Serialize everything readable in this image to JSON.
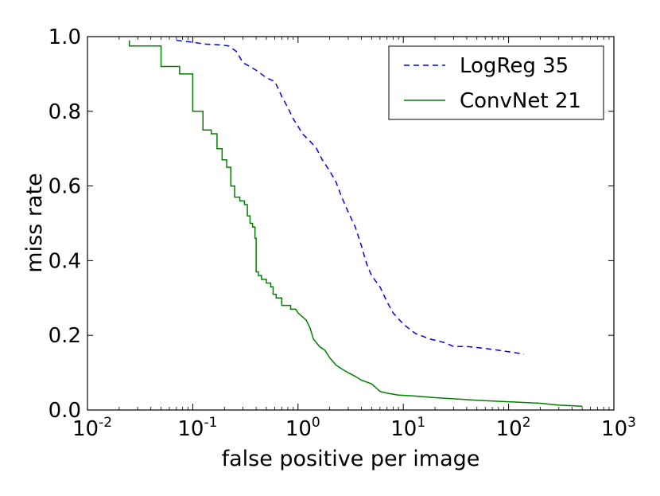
{
  "chart_data": {
    "type": "line",
    "title": "",
    "xlabel": "false positive per image",
    "ylabel": "miss rate",
    "xscale": "log",
    "xlim": [
      0.01,
      1000
    ],
    "ylim": [
      0.0,
      1.0
    ],
    "x_ticks": [
      {
        "base": "10",
        "exp": "-2",
        "value": 0.01
      },
      {
        "base": "10",
        "exp": "-1",
        "value": 0.1
      },
      {
        "base": "10",
        "exp": "0",
        "value": 1
      },
      {
        "base": "10",
        "exp": "1",
        "value": 10
      },
      {
        "base": "10",
        "exp": "2",
        "value": 100
      },
      {
        "base": "10",
        "exp": "3",
        "value": 1000
      }
    ],
    "y_ticks": [
      {
        "label": "0.0",
        "value": 0.0
      },
      {
        "label": "0.2",
        "value": 0.2
      },
      {
        "label": "0.4",
        "value": 0.4
      },
      {
        "label": "0.6",
        "value": 0.6
      },
      {
        "label": "0.8",
        "value": 0.8
      },
      {
        "label": "1.0",
        "value": 1.0
      }
    ],
    "grid": false,
    "legend_position": "top-right",
    "series": [
      {
        "name": "LogReg 35",
        "color": "#0000ff",
        "style": "dashed",
        "points": [
          [
            0.07,
            0.99
          ],
          [
            0.1,
            0.985
          ],
          [
            0.13,
            0.98
          ],
          [
            0.18,
            0.978
          ],
          [
            0.22,
            0.975
          ],
          [
            0.26,
            0.96
          ],
          [
            0.3,
            0.93
          ],
          [
            0.35,
            0.92
          ],
          [
            0.4,
            0.91
          ],
          [
            0.5,
            0.89
          ],
          [
            0.6,
            0.88
          ],
          [
            0.65,
            0.86
          ],
          [
            0.7,
            0.84
          ],
          [
            0.8,
            0.81
          ],
          [
            0.9,
            0.78
          ],
          [
            1.0,
            0.76
          ],
          [
            1.1,
            0.74
          ],
          [
            1.3,
            0.72
          ],
          [
            1.5,
            0.7
          ],
          [
            1.7,
            0.67
          ],
          [
            2.0,
            0.64
          ],
          [
            2.3,
            0.61
          ],
          [
            2.6,
            0.57
          ],
          [
            3.0,
            0.53
          ],
          [
            3.5,
            0.49
          ],
          [
            4.0,
            0.44
          ],
          [
            4.5,
            0.39
          ],
          [
            5.0,
            0.36
          ],
          [
            6.0,
            0.33
          ],
          [
            7.0,
            0.29
          ],
          [
            8.0,
            0.26
          ],
          [
            10.0,
            0.23
          ],
          [
            13.0,
            0.205
          ],
          [
            18.0,
            0.19
          ],
          [
            25.0,
            0.18
          ],
          [
            30.0,
            0.17
          ],
          [
            40.0,
            0.17
          ],
          [
            60.0,
            0.165
          ],
          [
            90.0,
            0.158
          ],
          [
            140.0,
            0.15
          ]
        ]
      },
      {
        "name": "ConvNet 21",
        "color": "#008000",
        "style": "solid",
        "points": [
          [
            0.025,
            0.99
          ],
          [
            0.025,
            0.975
          ],
          [
            0.05,
            0.975
          ],
          [
            0.05,
            0.92
          ],
          [
            0.075,
            0.92
          ],
          [
            0.075,
            0.9
          ],
          [
            0.1,
            0.9
          ],
          [
            0.1,
            0.8
          ],
          [
            0.125,
            0.8
          ],
          [
            0.125,
            0.75
          ],
          [
            0.15,
            0.75
          ],
          [
            0.15,
            0.74
          ],
          [
            0.17,
            0.74
          ],
          [
            0.17,
            0.7
          ],
          [
            0.19,
            0.7
          ],
          [
            0.19,
            0.67
          ],
          [
            0.21,
            0.67
          ],
          [
            0.21,
            0.65
          ],
          [
            0.23,
            0.65
          ],
          [
            0.23,
            0.6
          ],
          [
            0.25,
            0.6
          ],
          [
            0.25,
            0.57
          ],
          [
            0.28,
            0.57
          ],
          [
            0.28,
            0.56
          ],
          [
            0.31,
            0.56
          ],
          [
            0.31,
            0.55
          ],
          [
            0.33,
            0.55
          ],
          [
            0.33,
            0.52
          ],
          [
            0.35,
            0.52
          ],
          [
            0.35,
            0.5
          ],
          [
            0.37,
            0.5
          ],
          [
            0.37,
            0.49
          ],
          [
            0.39,
            0.49
          ],
          [
            0.39,
            0.46
          ],
          [
            0.4,
            0.46
          ],
          [
            0.4,
            0.37
          ],
          [
            0.42,
            0.37
          ],
          [
            0.42,
            0.36
          ],
          [
            0.45,
            0.36
          ],
          [
            0.45,
            0.35
          ],
          [
            0.5,
            0.35
          ],
          [
            0.5,
            0.34
          ],
          [
            0.55,
            0.34
          ],
          [
            0.55,
            0.33
          ],
          [
            0.58,
            0.33
          ],
          [
            0.58,
            0.31
          ],
          [
            0.62,
            0.31
          ],
          [
            0.62,
            0.3
          ],
          [
            0.7,
            0.3
          ],
          [
            0.7,
            0.28
          ],
          [
            0.85,
            0.28
          ],
          [
            0.85,
            0.27
          ],
          [
            0.95,
            0.27
          ],
          [
            1.0,
            0.26
          ],
          [
            1.1,
            0.25
          ],
          [
            1.2,
            0.24
          ],
          [
            1.3,
            0.22
          ],
          [
            1.4,
            0.19
          ],
          [
            1.6,
            0.17
          ],
          [
            1.8,
            0.16
          ],
          [
            2.0,
            0.14
          ],
          [
            2.3,
            0.12
          ],
          [
            2.6,
            0.11
          ],
          [
            3.0,
            0.1
          ],
          [
            3.5,
            0.09
          ],
          [
            4.0,
            0.08
          ],
          [
            5.0,
            0.07
          ],
          [
            6.0,
            0.05
          ],
          [
            7.0,
            0.045
          ],
          [
            9.0,
            0.04
          ],
          [
            12.0,
            0.038
          ],
          [
            20.0,
            0.033
          ],
          [
            30.0,
            0.03
          ],
          [
            50.0,
            0.026
          ],
          [
            100.0,
            0.022
          ],
          [
            200.0,
            0.018
          ],
          [
            300.0,
            0.013
          ],
          [
            500.0,
            0.01
          ]
        ]
      }
    ]
  }
}
